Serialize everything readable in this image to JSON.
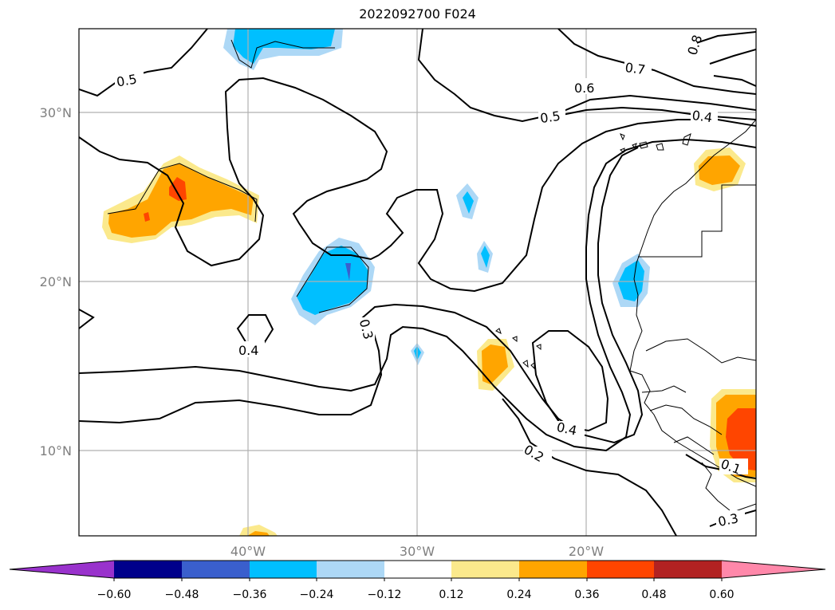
{
  "title": "2022092700 F024",
  "map": {
    "lat_labels": [
      "30°N",
      "20°N",
      "10°N"
    ],
    "lon_labels": [
      "40°W",
      "30°W",
      "20°W"
    ],
    "contour_labels": [
      "0.5",
      "0.6",
      "0.7",
      "0.8",
      "0.5",
      "0.4",
      "0.3",
      "0.4",
      "0.4",
      "0.2",
      "0.1",
      "0.3"
    ]
  },
  "colorbar": {
    "ticks": [
      "−0.60",
      "−0.48",
      "−0.36",
      "−0.24",
      "−0.12",
      "0.12",
      "0.24",
      "0.36",
      "0.48",
      "0.60"
    ],
    "colors": {
      "lt_neg060": "#9932cc",
      "neg060_neg048": "#00008b",
      "neg048_neg036": "#3a5fcd",
      "neg036_neg024": "#00bfff",
      "neg024_neg012": "#add8f6",
      "neg012_012": "#ffffff",
      "p012_p024": "#fbe98c",
      "p024_p036": "#ffa500",
      "p036_p048": "#ff4500",
      "p048_p060": "#b22222",
      "gt_p060": "#ff88aa"
    }
  }
}
